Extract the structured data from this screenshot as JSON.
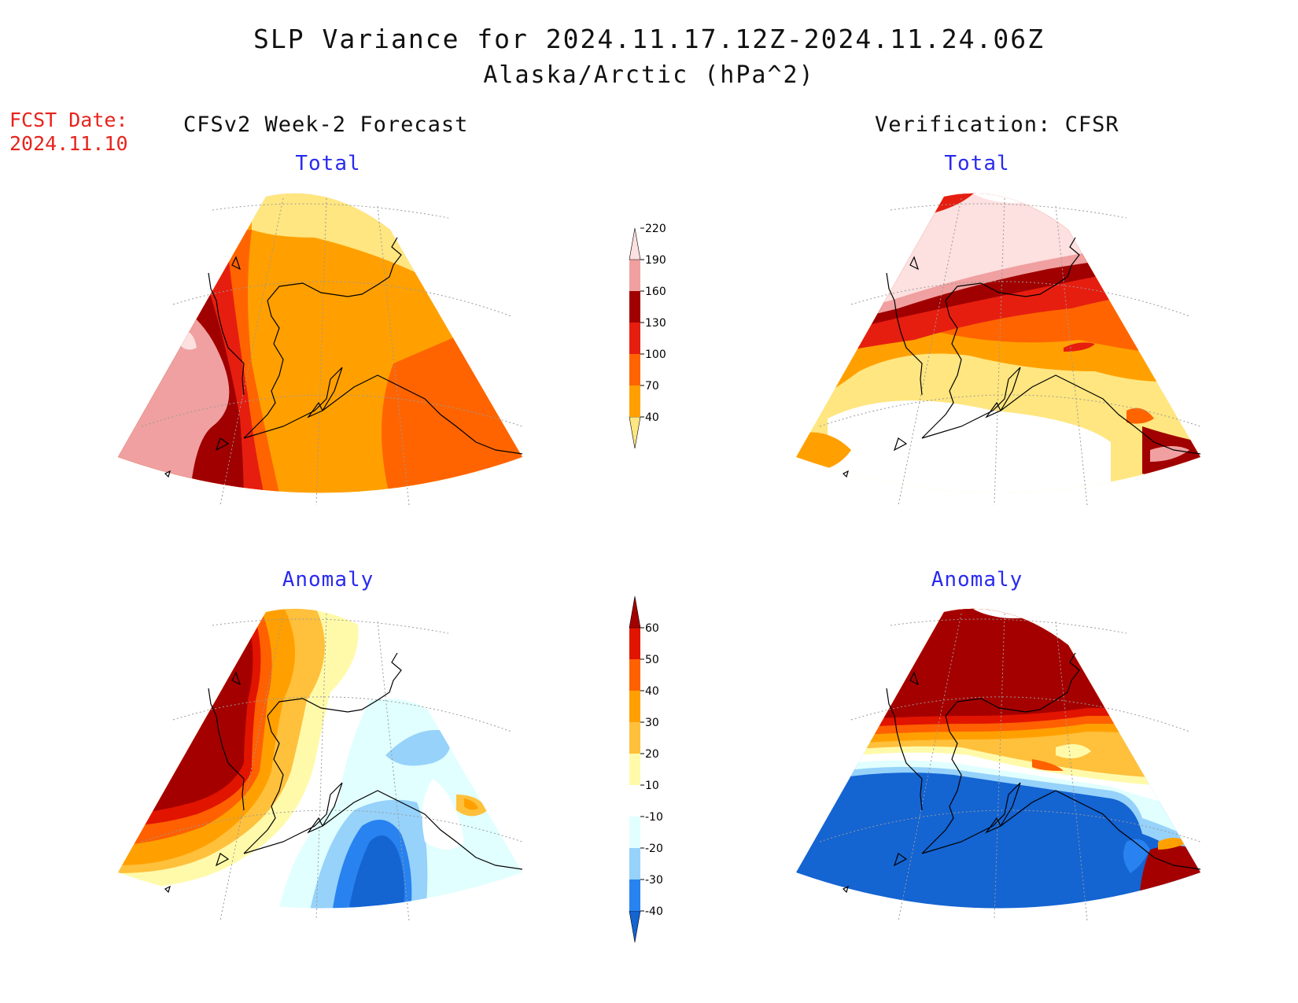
{
  "title": "SLP Variance for 2024.11.17.12Z-2024.11.24.06Z",
  "subtitle": "Alaska/Arctic (hPa^2)",
  "fcst_label": "FCST Date:",
  "fcst_date": "2024.11.10",
  "left_column_title": "CFSv2 Week-2 Forecast",
  "right_column_title": "Verification: CFSR",
  "panels": {
    "forecast_total": {
      "heading": "Total"
    },
    "verification_total": {
      "heading": "Total"
    },
    "forecast_anomaly": {
      "heading": "Anomaly"
    },
    "verification_anomaly": {
      "heading": "Anomaly"
    }
  },
  "total_colorbar": {
    "labels": [
      "40",
      "70",
      "100",
      "130",
      "160",
      "190",
      "220"
    ],
    "colors": [
      "#ffe680",
      "#ffa000",
      "#ff6400",
      "#e61e10",
      "#a00000",
      "#f0a0a0",
      "#fde0e0"
    ]
  },
  "anomaly_colorbar": {
    "labels": [
      "-40",
      "-30",
      "-20",
      "-10",
      "10",
      "20",
      "30",
      "40",
      "50",
      "60"
    ],
    "colors": [
      "#1464d2",
      "#2882f0",
      "#96d2fa",
      "#e1ffff",
      "#ffffff",
      "#fffaaa",
      "#ffc03c",
      "#ffa000",
      "#ff6000",
      "#e11400",
      "#a50000"
    ]
  }
}
